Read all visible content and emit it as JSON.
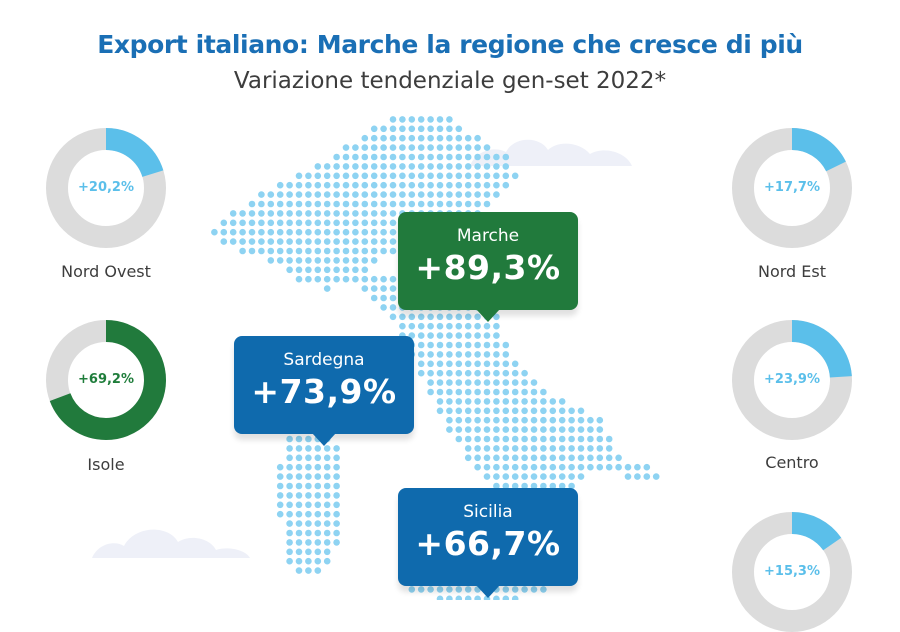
{
  "title": "Export italiano: Marche la regione che cresce di più",
  "subtitle": "Variazione tendenziale gen-set 2022*",
  "colors": {
    "title": "#1a6fb5",
    "light_blue": "#5bbfea",
    "ring_grey": "#dcdcdc",
    "green": "#217a3c",
    "blue": "#0f6aad",
    "map_dots": "#8ed3f2",
    "clouds": "#eef0f8"
  },
  "chart_data": {
    "type": "donut",
    "title": "Export italiano: Marche la regione che cresce di più",
    "subtitle": "Variazione tendenziale gen-set 2022*",
    "areas": [
      {
        "name": "Nord Ovest",
        "value": 20.2,
        "label": "+20,2%"
      },
      {
        "name": "Nord Est",
        "value": 17.7,
        "label": "+17,7%"
      },
      {
        "name": "Isole",
        "value": 69.2,
        "label": "+69,2%"
      },
      {
        "name": "Centro",
        "value": 23.9,
        "label": "+23,9%"
      },
      {
        "name": "",
        "value": 15.3,
        "label": "+15,3%"
      }
    ],
    "highlighted_regions": [
      {
        "name": "Marche",
        "value": 89.3,
        "label": "+89,3%"
      },
      {
        "name": "Sardegna",
        "value": 73.9,
        "label": "+73,9%"
      },
      {
        "name": "Sicilia",
        "value": 66.7,
        "label": "+66,7%"
      }
    ]
  }
}
